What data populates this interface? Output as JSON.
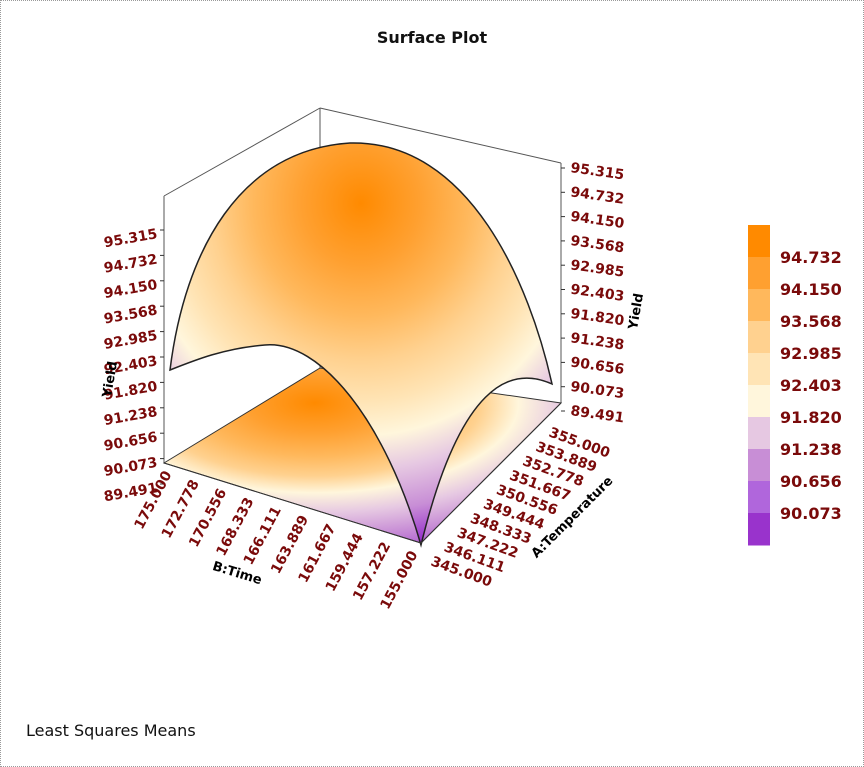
{
  "title": "Surface Plot",
  "footer_note": "Least Squares Means",
  "chart_data": {
    "type": "surface",
    "title": "Surface Plot",
    "z_axis": {
      "label": "Yield",
      "ticks": [
        "95.315",
        "94.732",
        "94.150",
        "93.568",
        "92.985",
        "92.403",
        "91.820",
        "91.238",
        "90.656",
        "90.073",
        "89.491"
      ],
      "range": [
        89.491,
        95.315
      ]
    },
    "x_axis": {
      "label": "B:Time",
      "ticks": [
        "175.000",
        "172.778",
        "170.556",
        "168.333",
        "166.111",
        "163.889",
        "161.667",
        "159.444",
        "157.222",
        "155.000"
      ],
      "range": [
        155.0,
        175.0
      ]
    },
    "y_axis": {
      "label": "A:Temperature",
      "ticks": [
        "345.000",
        "346.111",
        "347.222",
        "348.333",
        "349.444",
        "350.556",
        "351.667",
        "352.778",
        "353.889",
        "355.000"
      ],
      "range": [
        345.0,
        355.0
      ]
    },
    "response": {
      "max": 95.315,
      "min": 89.491,
      "shape": "dome"
    },
    "legend": {
      "position": "right",
      "levels": [
        "94.732",
        "94.150",
        "93.568",
        "92.985",
        "92.403",
        "91.820",
        "91.238",
        "90.656",
        "90.073"
      ],
      "colors": [
        "#ff8a00",
        "#ffa030",
        "#ffb85c",
        "#ffd18f",
        "#ffe4b5",
        "#fff6dc",
        "#e6c8e2",
        "#c88ed6",
        "#b066dc",
        "#9933cc"
      ]
    }
  }
}
